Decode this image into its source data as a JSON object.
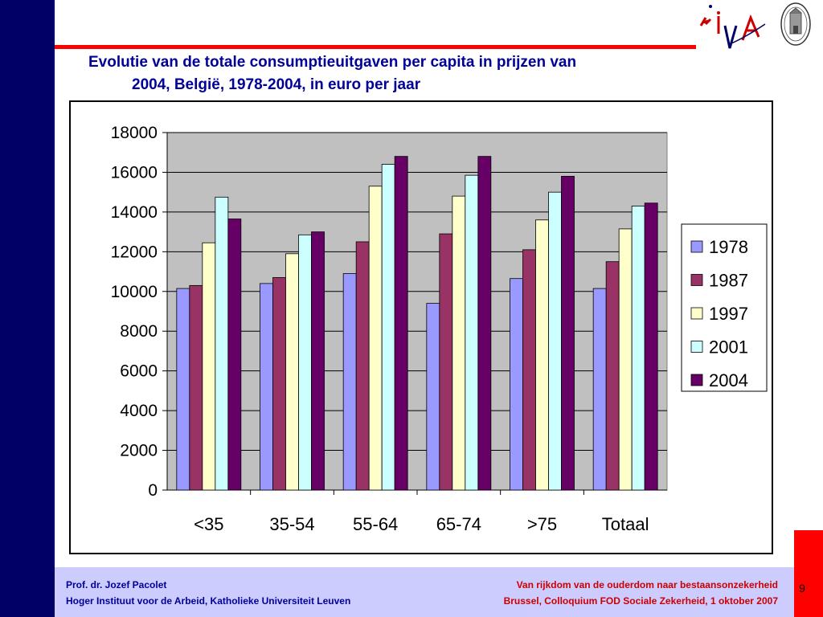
{
  "slide": {
    "title_line1": "Evolutie van de totale consumptieuitgaven per capita in prijzen van",
    "title_line2": "2004, België, 1978-2004, in euro per jaar",
    "page_number": "9"
  },
  "footer": {
    "author": "Prof. dr. Jozef Pacolet",
    "institute": "Hoger Instituut voor de Arbeid, Katholieke Universiteit Leuven",
    "event_title": "Van rijkdom van de ouderdom naar bestaansonzekerheid",
    "event_details": "Brussel, Colloquium FOD Sociale Zekerheid, 1 oktober 2007"
  },
  "logos": {
    "hiva": "HIVA"
  },
  "colors": {
    "navy": "#000066",
    "title_blue": "#000099",
    "accent_red": "#ff0000",
    "footer_bg": "#ccccff",
    "plot_bg": "#c0c0c0"
  },
  "chart_data": {
    "type": "bar",
    "title": "",
    "xlabel": "",
    "ylabel": "",
    "categories": [
      "<35",
      "35-54",
      "55-64",
      "65-74",
      ">75",
      "Totaal"
    ],
    "ylim": [
      0,
      18000
    ],
    "yticks": [
      0,
      2000,
      4000,
      6000,
      8000,
      10000,
      12000,
      14000,
      16000,
      18000
    ],
    "grid": true,
    "legend_position": "right",
    "series": [
      {
        "name": "1978",
        "color": "#9999ff",
        "values": [
          10150,
          10400,
          10900,
          9400,
          10650,
          10150
        ]
      },
      {
        "name": "1987",
        "color": "#993366",
        "values": [
          10300,
          10700,
          12500,
          12900,
          12100,
          11500
        ]
      },
      {
        "name": "1997",
        "color": "#ffffcc",
        "values": [
          12450,
          11900,
          15300,
          14800,
          13600,
          13150
        ]
      },
      {
        "name": "2001",
        "color": "#ccffff",
        "values": [
          14750,
          12850,
          16400,
          15850,
          15000,
          14300
        ]
      },
      {
        "name": "2004",
        "color": "#660066",
        "values": [
          13650,
          13000,
          16800,
          16800,
          15800,
          14450
        ]
      }
    ]
  }
}
